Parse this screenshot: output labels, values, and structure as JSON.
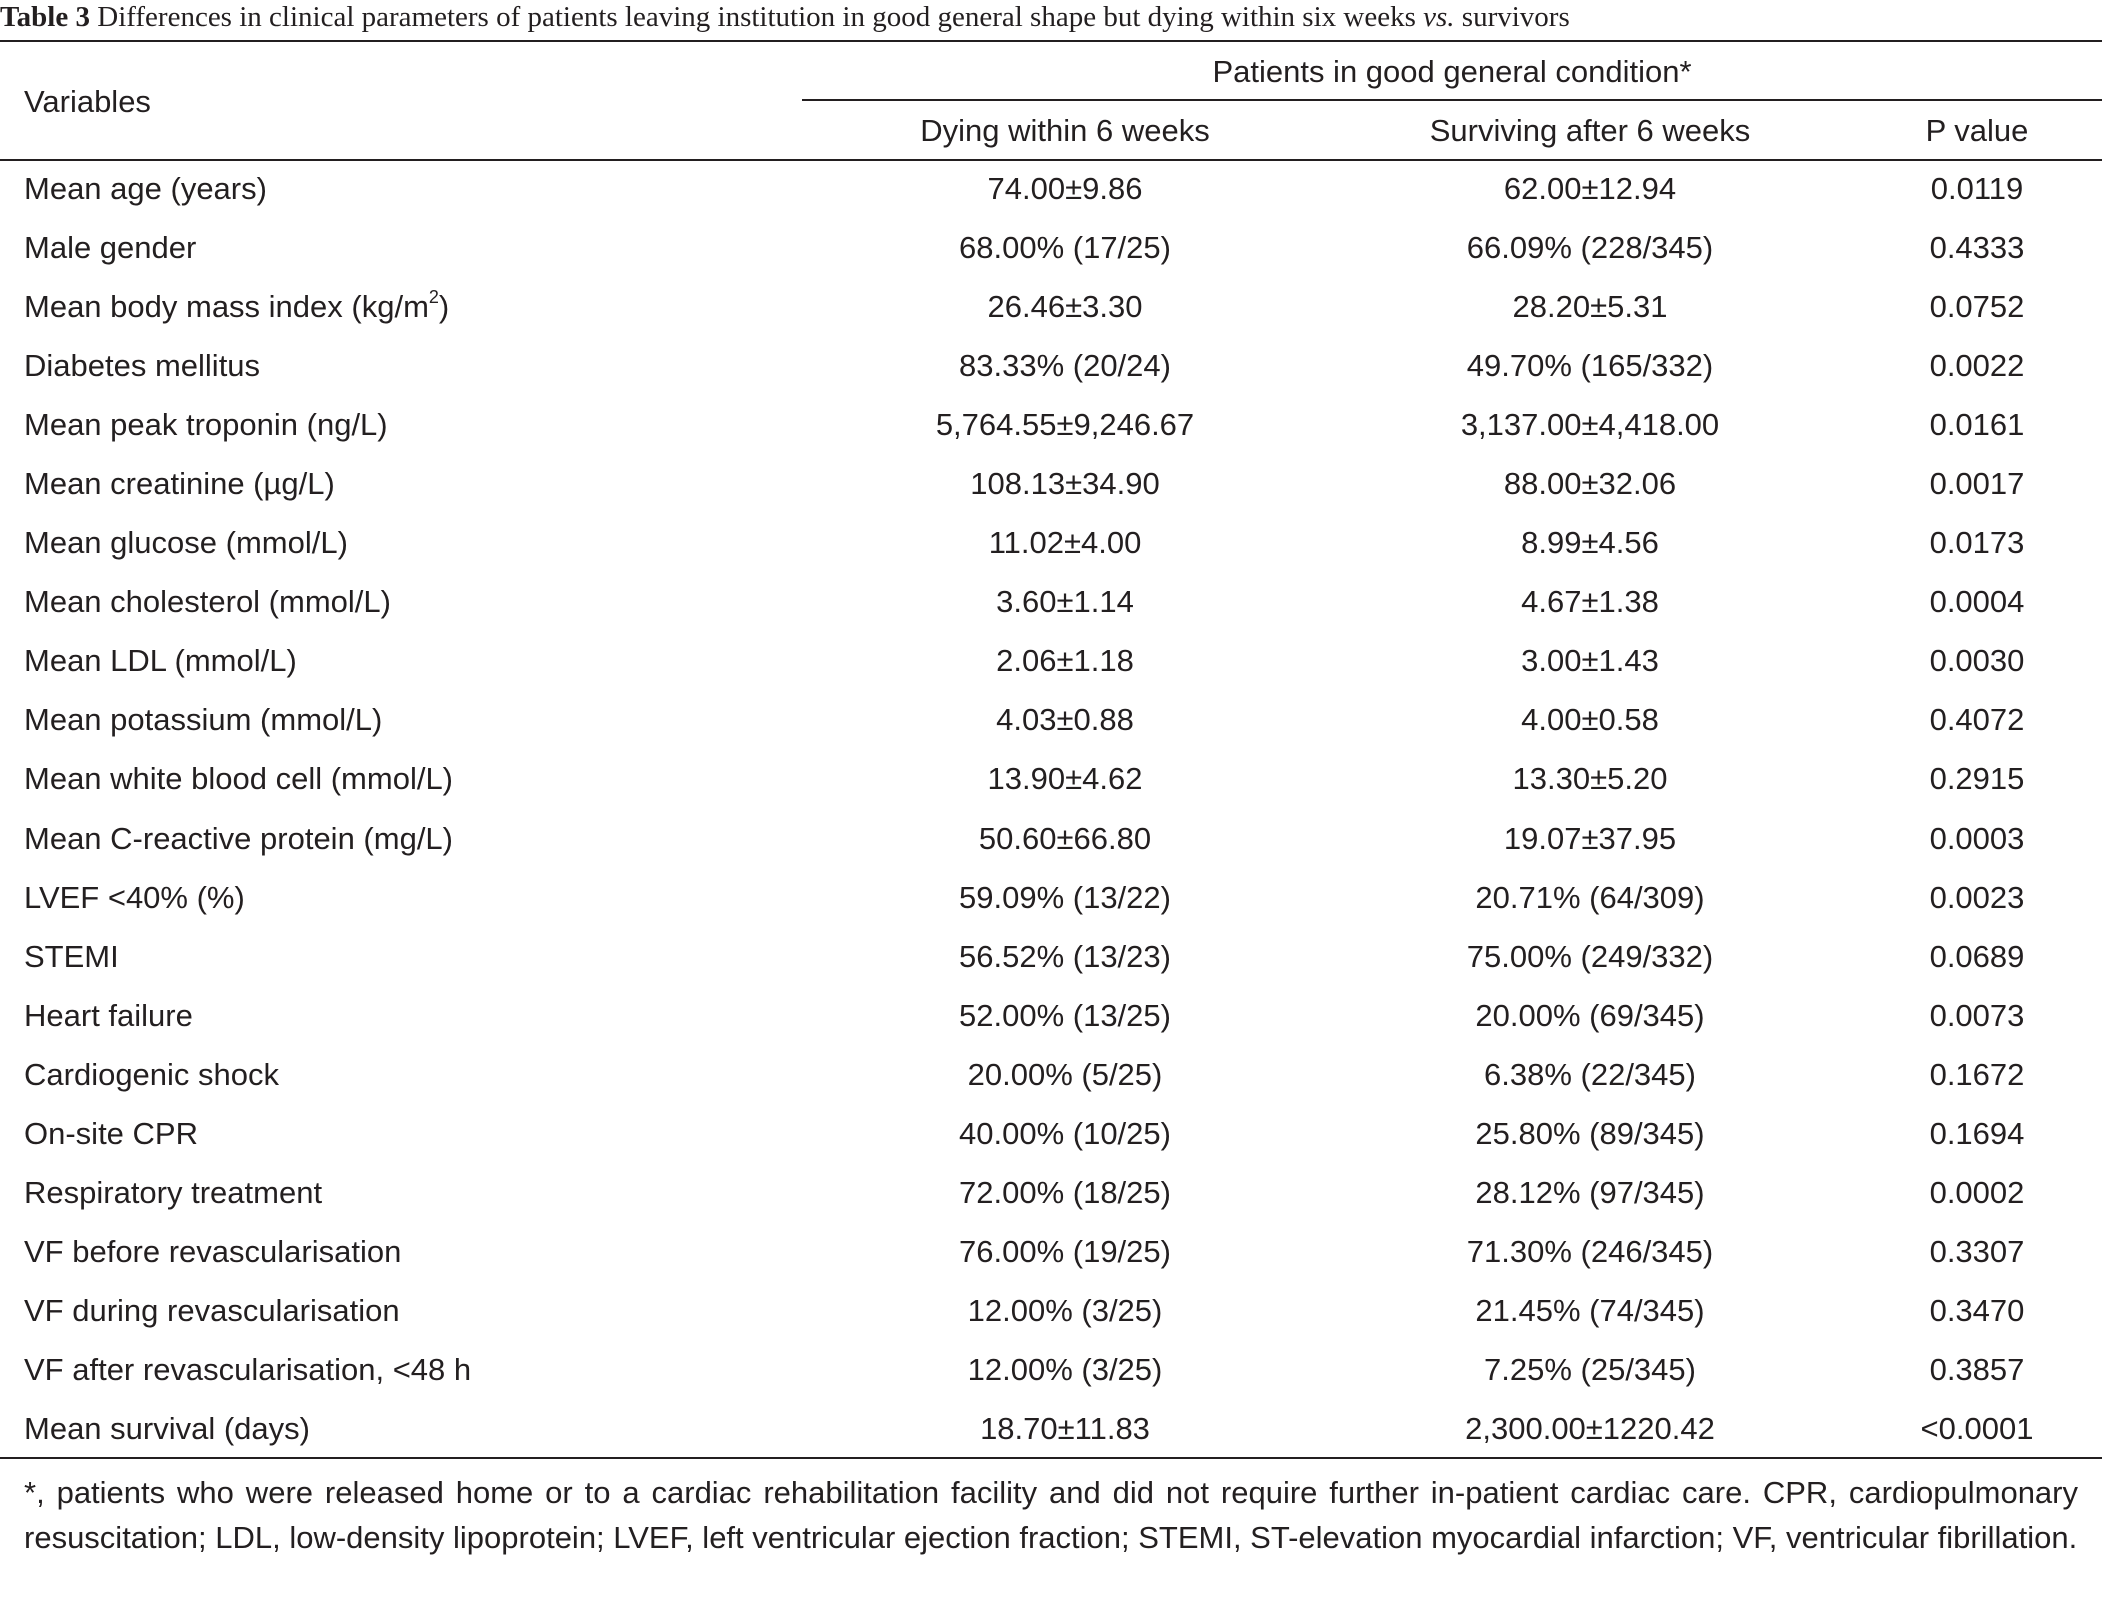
{
  "caption": {
    "label": "Table 3",
    "text_before": "Differences in clinical parameters of patients leaving institution in good general shape but dying within six weeks",
    "vs": "vs.",
    "text_after": "survivors"
  },
  "header": {
    "variables": "Variables",
    "group": "Patients in good general condition*",
    "col1": "Dying within 6 weeks",
    "col2": "Surviving after 6 weeks",
    "col3": "P value"
  },
  "rows": [
    {
      "variable": "Mean age (years)",
      "dying": "74.00±9.86",
      "surviving": "62.00±12.94",
      "p": "0.0119"
    },
    {
      "variable": "Male gender",
      "dying": "68.00% (17/25)",
      "surviving": "66.09% (228/345)",
      "p": "0.4333"
    },
    {
      "variable": "Mean body mass index (kg/m",
      "sup": "2",
      "suffix": ")",
      "dying": "26.46±3.30",
      "surviving": "28.20±5.31",
      "p": "0.0752"
    },
    {
      "variable": "Diabetes mellitus",
      "dying": "83.33% (20/24)",
      "surviving": "49.70% (165/332)",
      "p": "0.0022"
    },
    {
      "variable": "Mean peak troponin (ng/L)",
      "dying": "5,764.55±9,246.67",
      "surviving": "3,137.00±4,418.00",
      "p": "0.0161"
    },
    {
      "variable": "Mean creatinine (µg/L)",
      "dying": "108.13±34.90",
      "surviving": "88.00±32.06",
      "p": "0.0017"
    },
    {
      "variable": "Mean glucose (mmol/L)",
      "dying": "11.02±4.00",
      "surviving": "8.99±4.56",
      "p": "0.0173"
    },
    {
      "variable": "Mean cholesterol (mmol/L)",
      "dying": "3.60±1.14",
      "surviving": "4.67±1.38",
      "p": "0.0004"
    },
    {
      "variable": "Mean LDL (mmol/L)",
      "dying": "2.06±1.18",
      "surviving": "3.00±1.43",
      "p": "0.0030"
    },
    {
      "variable": "Mean potassium (mmol/L)",
      "dying": "4.03±0.88",
      "surviving": "4.00±0.58",
      "p": "0.4072"
    },
    {
      "variable": "Mean white blood cell (mmol/L)",
      "dying": "13.90±4.62",
      "surviving": "13.30±5.20",
      "p": "0.2915"
    },
    {
      "variable": "Mean C-reactive protein (mg/L)",
      "dying": "50.60±66.80",
      "surviving": "19.07±37.95",
      "p": "0.0003"
    },
    {
      "variable": "LVEF <40% (%)",
      "dying": "59.09% (13/22)",
      "surviving": "20.71% (64/309)",
      "p": "0.0023"
    },
    {
      "variable": "STEMI",
      "dying": "56.52% (13/23)",
      "surviving": "75.00% (249/332)",
      "p": "0.0689"
    },
    {
      "variable": "Heart failure",
      "dying": "52.00% (13/25)",
      "surviving": "20.00% (69/345)",
      "p": "0.0073"
    },
    {
      "variable": "Cardiogenic shock",
      "dying": "20.00% (5/25)",
      "surviving": "6.38% (22/345)",
      "p": "0.1672"
    },
    {
      "variable": "On-site CPR",
      "dying": "40.00% (10/25)",
      "surviving": "25.80% (89/345)",
      "p": "0.1694"
    },
    {
      "variable": "Respiratory treatment",
      "dying": "72.00% (18/25)",
      "surviving": "28.12% (97/345)",
      "p": "0.0002"
    },
    {
      "variable": "VF before revascularisation",
      "dying": "76.00% (19/25)",
      "surviving": "71.30% (246/345)",
      "p": "0.3307"
    },
    {
      "variable": "VF during revascularisation",
      "dying": "12.00% (3/25)",
      "surviving": "21.45% (74/345)",
      "p": "0.3470"
    },
    {
      "variable": "VF after revascularisation, <48 h",
      "dying": "12.00% (3/25)",
      "surviving": "7.25% (25/345)",
      "p": "0.3857"
    },
    {
      "variable": "Mean survival (days)",
      "dying": "18.70±11.83",
      "surviving": "2,300.00±1220.42",
      "p": "<0.0001"
    }
  ],
  "footnote": "*, patients who were released home or to a cardiac rehabilitation facility and did not require further in-patient cardiac care. CPR, cardiopulmonary resuscitation; LDL, low-density lipoprotein; LVEF, left ventricular ejection fraction; STEMI, ST-elevation myocardial infarction; VF, ventricular fibrillation."
}
